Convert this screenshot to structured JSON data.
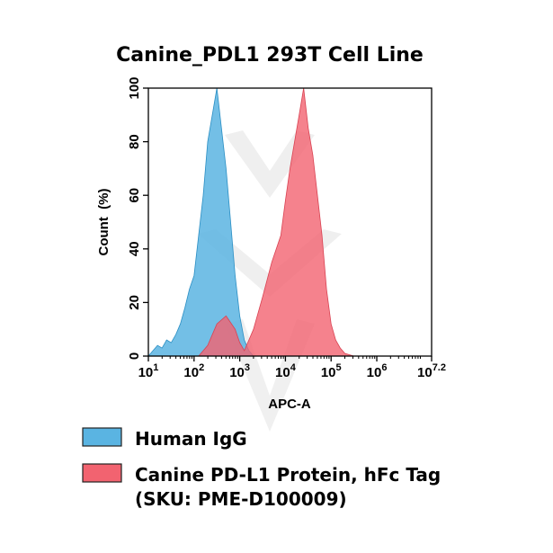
{
  "chart_data": {
    "type": "area",
    "title": "Canine_PDL1 293T Cell Line",
    "xlabel": "APC-A",
    "ylabel": "Count  (%)",
    "x_scale": "log",
    "xlim": [
      1,
      7.2
    ],
    "ylim": [
      0,
      100
    ],
    "x_ticks": [
      {
        "base": "10",
        "exp": "1",
        "value": 1
      },
      {
        "base": "10",
        "exp": "2",
        "value": 2
      },
      {
        "base": "10",
        "exp": "3",
        "value": 3
      },
      {
        "base": "10",
        "exp": "4",
        "value": 4
      },
      {
        "base": "10",
        "exp": "5",
        "value": 5
      },
      {
        "base": "10",
        "exp": "6",
        "value": 6
      },
      {
        "base": "10",
        "exp": "7.2",
        "value": 7.2
      }
    ],
    "y_ticks": [
      "0",
      "20",
      "40",
      "60",
      "80",
      "100"
    ],
    "y_tick_values": [
      0,
      20,
      40,
      60,
      80,
      100
    ],
    "series": [
      {
        "name": "Human IgG",
        "color": "#5ab4e2",
        "log_x": [
          1.0,
          1.1,
          1.2,
          1.3,
          1.4,
          1.5,
          1.6,
          1.7,
          1.8,
          1.9,
          2.0,
          2.1,
          2.2,
          2.3,
          2.4,
          2.5,
          2.6,
          2.7,
          2.8,
          2.9,
          3.0,
          3.1,
          3.2,
          3.3
        ],
        "values": [
          0,
          2,
          4,
          3,
          6,
          5,
          8,
          12,
          18,
          25,
          30,
          45,
          60,
          80,
          90,
          100,
          85,
          70,
          50,
          30,
          15,
          6,
          2,
          0
        ]
      },
      {
        "name": "Canine PD-L1 Protein, hFc Tag",
        "name_line2": "(SKU: PME-D100009)",
        "color": "#f26370",
        "log_x": [
          2.1,
          2.3,
          2.5,
          2.7,
          2.9,
          3.0,
          3.1,
          3.2,
          3.3,
          3.5,
          3.7,
          3.9,
          4.0,
          4.1,
          4.2,
          4.3,
          4.4,
          4.5,
          4.6,
          4.7,
          4.8,
          4.9,
          5.0,
          5.1,
          5.2,
          5.3,
          5.4,
          5.5
        ],
        "values": [
          0,
          4,
          12,
          15,
          10,
          5,
          2,
          6,
          10,
          22,
          35,
          45,
          58,
          70,
          80,
          90,
          100,
          85,
          75,
          60,
          45,
          25,
          12,
          6,
          3,
          1,
          0.5,
          0
        ]
      }
    ],
    "legend_position": "bottom",
    "grid": false
  }
}
